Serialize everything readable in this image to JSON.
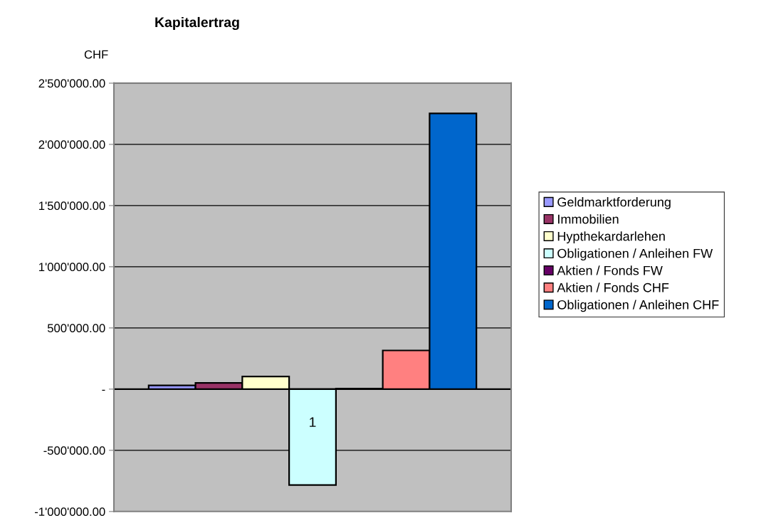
{
  "chart_data": {
    "type": "bar",
    "title": "Kapitalertrag",
    "ylabel": "CHF",
    "categories": [
      "1"
    ],
    "series": [
      {
        "name": "Geldmarktforderung",
        "color": "#9999ff",
        "values": [
          31000
        ]
      },
      {
        "name": "Immobilien",
        "color": "#993366",
        "values": [
          51000
        ]
      },
      {
        "name": "Hypthekardarlehen",
        "color": "#ffffcc",
        "values": [
          103000
        ]
      },
      {
        "name": "Obligationen / Anleihen FW",
        "color": "#ccffff",
        "values": [
          -784000
        ]
      },
      {
        "name": "Aktien / Fonds FW",
        "color": "#660066",
        "values": [
          4000
        ]
      },
      {
        "name": "Aktien / Fonds CHF",
        "color": "#ff8080",
        "values": [
          316000
        ]
      },
      {
        "name": "Obligationen / Anleihen CHF",
        "color": "#0066cc",
        "values": [
          2253000
        ]
      }
    ],
    "ylim": [
      -1000000,
      2500000
    ],
    "yticks": [
      {
        "value": -1000000,
        "label": "-1'000'000.00"
      },
      {
        "value": -500000,
        "label": "-500'000.00"
      },
      {
        "value": 0,
        "label": "-"
      },
      {
        "value": 500000,
        "label": "500'000.00"
      },
      {
        "value": 1000000,
        "label": "1'000'000.00"
      },
      {
        "value": 1500000,
        "label": "1'500'000.00"
      },
      {
        "value": 2000000,
        "label": "2'000'000.00"
      },
      {
        "value": 2500000,
        "label": "2'500'000.00"
      }
    ],
    "grid": "y",
    "legend": "right"
  }
}
